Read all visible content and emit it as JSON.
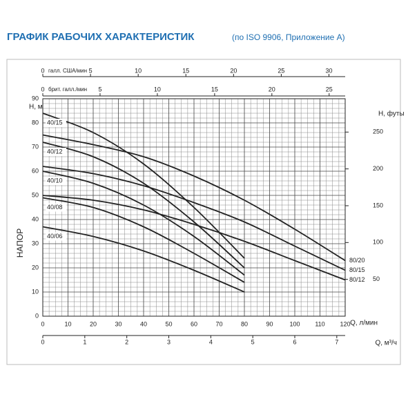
{
  "chart_data": {
    "type": "line",
    "title": "ГРАФИК РАБОЧИХ ХАРАКТЕРИСТИК",
    "subtitle": "(по ISO 9906, Приложение А)",
    "y_label": "НАПОР",
    "y_unit": "H, м",
    "y2_unit": "H, футы",
    "x_label": "Q, л/мин",
    "x2_label": "Q, м³/ч",
    "x": [
      0,
      20,
      40,
      60,
      80,
      100,
      120
    ],
    "xlim": [
      0,
      120
    ],
    "xticks": [
      0,
      10,
      20,
      30,
      40,
      50,
      60,
      70,
      80,
      90,
      100,
      110,
      120
    ],
    "ylim": [
      0,
      90
    ],
    "yticks": [
      0,
      10,
      20,
      30,
      40,
      50,
      60,
      70,
      80,
      90
    ],
    "y2lim": [
      0,
      295.28
    ],
    "y2ticks": [
      50,
      100,
      150,
      200,
      250
    ],
    "x_axis_m3h": {
      "lim": [
        0,
        7.2
      ],
      "ticks": [
        0,
        1,
        2,
        3,
        4,
        5,
        6,
        7
      ]
    },
    "x_axis_us_gal": {
      "label": "галл. США/мин",
      "lim": [
        0,
        31.7
      ],
      "ticks": [
        0,
        5,
        10,
        15,
        20,
        25,
        30
      ]
    },
    "x_axis_imp_gal": {
      "label": "брит. галл./мин",
      "lim": [
        0,
        26.4
      ],
      "ticks": [
        0,
        5,
        10,
        15,
        20,
        25
      ]
    },
    "grid": true,
    "series": [
      {
        "name": "40/15",
        "color": "#222222",
        "values": [
          84,
          76,
          63,
          45,
          24,
          null,
          null
        ]
      },
      {
        "name": "40/12",
        "color": "#222222",
        "values": [
          72,
          66,
          55,
          39,
          20,
          null,
          null
        ]
      },
      {
        "name": "40/10",
        "color": "#222222",
        "values": [
          60,
          55,
          46,
          33,
          17,
          null,
          null
        ]
      },
      {
        "name": "40/08",
        "color": "#222222",
        "values": [
          49,
          45,
          37,
          26,
          14,
          null,
          null
        ]
      },
      {
        "name": "40/06",
        "color": "#222222",
        "values": [
          37,
          33,
          27,
          19,
          10,
          null,
          null
        ]
      },
      {
        "name": "80/20",
        "color": "#222222",
        "values": [
          75,
          71,
          66,
          58,
          48,
          36,
          23
        ]
      },
      {
        "name": "80/15",
        "color": "#222222",
        "values": [
          62,
          59,
          54,
          47,
          39,
          29,
          19
        ]
      },
      {
        "name": "80/12",
        "color": "#222222",
        "values": [
          50,
          48,
          44,
          38,
          31,
          23,
          15
        ]
      }
    ]
  }
}
